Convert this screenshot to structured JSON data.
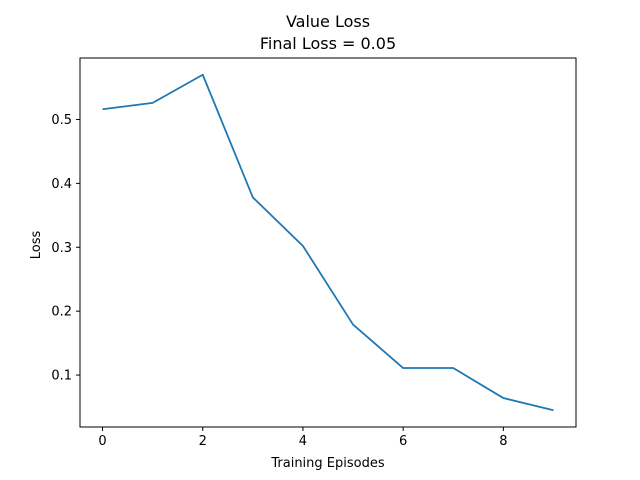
{
  "chart_data": {
    "type": "line",
    "title": "Value Loss",
    "subtitle": "Final Loss = 0.05",
    "xlabel": "Training Episodes",
    "ylabel": "Loss",
    "x": [
      0,
      1,
      2,
      3,
      4,
      5,
      6,
      7,
      8,
      9
    ],
    "series": [
      {
        "values": [
          0.516,
          0.526,
          0.57,
          0.378,
          0.302,
          0.179,
          0.111,
          0.111,
          0.064,
          0.045
        ],
        "color": "#1f77b4"
      }
    ],
    "xlim": [
      -0.45,
      9.45
    ],
    "ylim": [
      0.0187,
      0.5962
    ],
    "xticks": [
      "0",
      "2",
      "4",
      "6",
      "8"
    ],
    "yticks": [
      "0.1",
      "0.2",
      "0.3",
      "0.4",
      "0.5"
    ],
    "grid": false,
    "legend": "none"
  }
}
